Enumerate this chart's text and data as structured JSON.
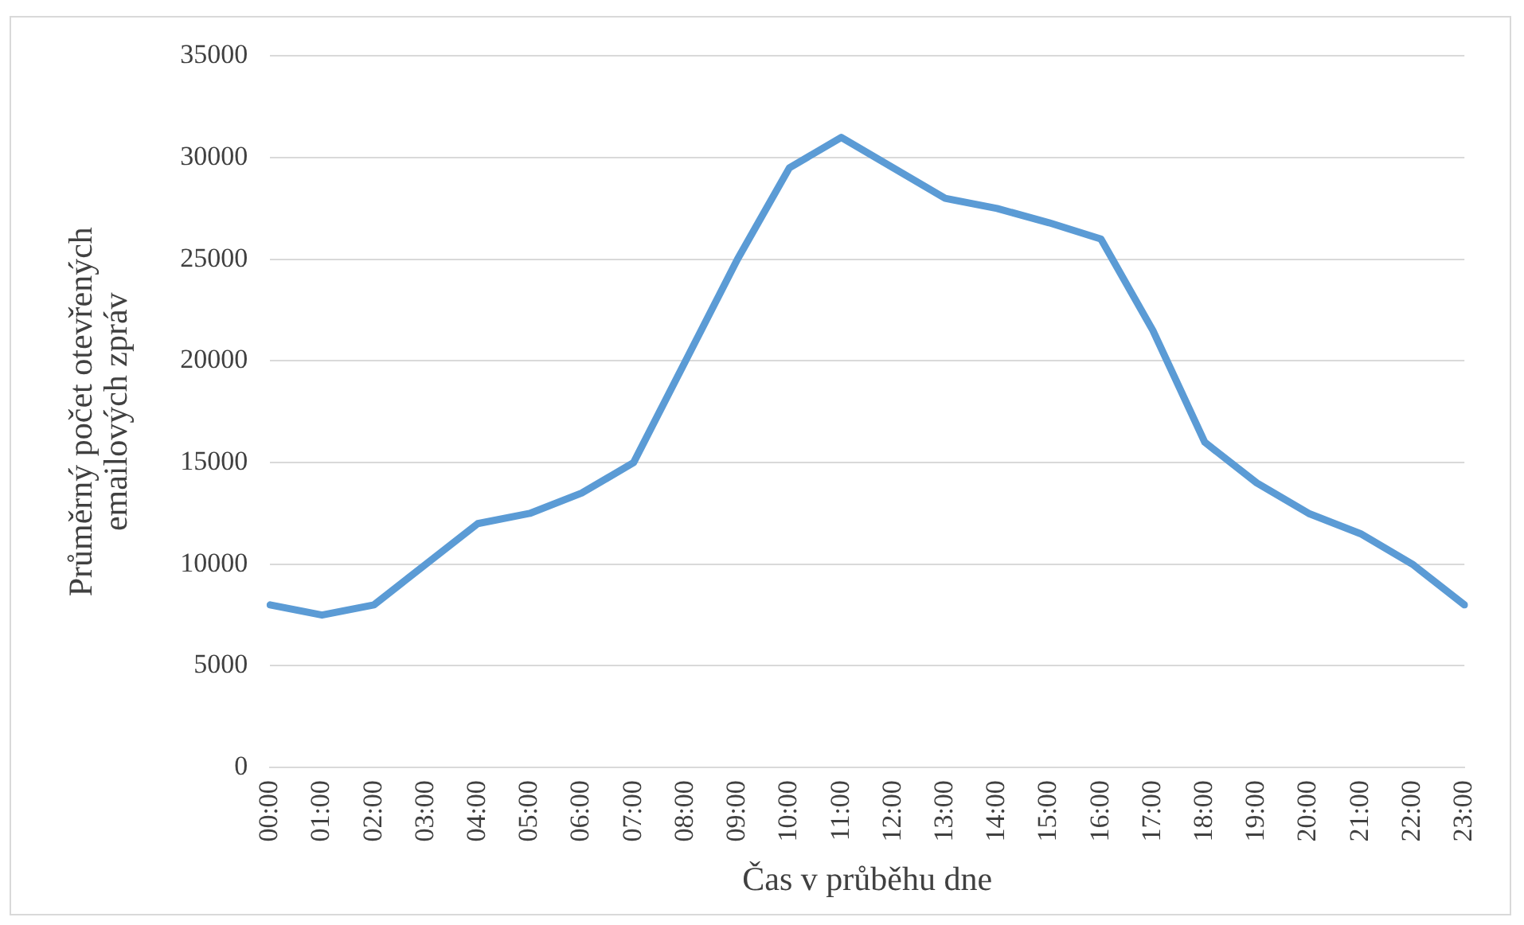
{
  "chart_data": {
    "type": "line",
    "xlabel": "Čas v průběhu dne",
    "ylabel": "Průměrný počet otevřených emailových zpráv",
    "categories": [
      "00:00",
      "01:00",
      "02:00",
      "03:00",
      "04:00",
      "05:00",
      "06:00",
      "07:00",
      "08:00",
      "09:00",
      "10:00",
      "11:00",
      "12:00",
      "13:00",
      "14:00",
      "15:00",
      "16:00",
      "17:00",
      "18:00",
      "19:00",
      "20:00",
      "21:00",
      "22:00",
      "23:00"
    ],
    "series": [
      {
        "color": "#5b9bd5",
        "values": [
          8000,
          7500,
          8000,
          10000,
          12000,
          12500,
          13500,
          15000,
          20000,
          25000,
          29500,
          31000,
          29500,
          28000,
          27500,
          26800,
          26000,
          21500,
          16000,
          14000,
          12500,
          11500,
          10000,
          8000
        ]
      }
    ],
    "ylim": [
      0,
      35000
    ],
    "yticks": [
      0,
      5000,
      10000,
      15000,
      20000,
      25000,
      30000,
      35000
    ],
    "grid": "y",
    "legend": false,
    "marker": "none",
    "line_style": "solid"
  }
}
